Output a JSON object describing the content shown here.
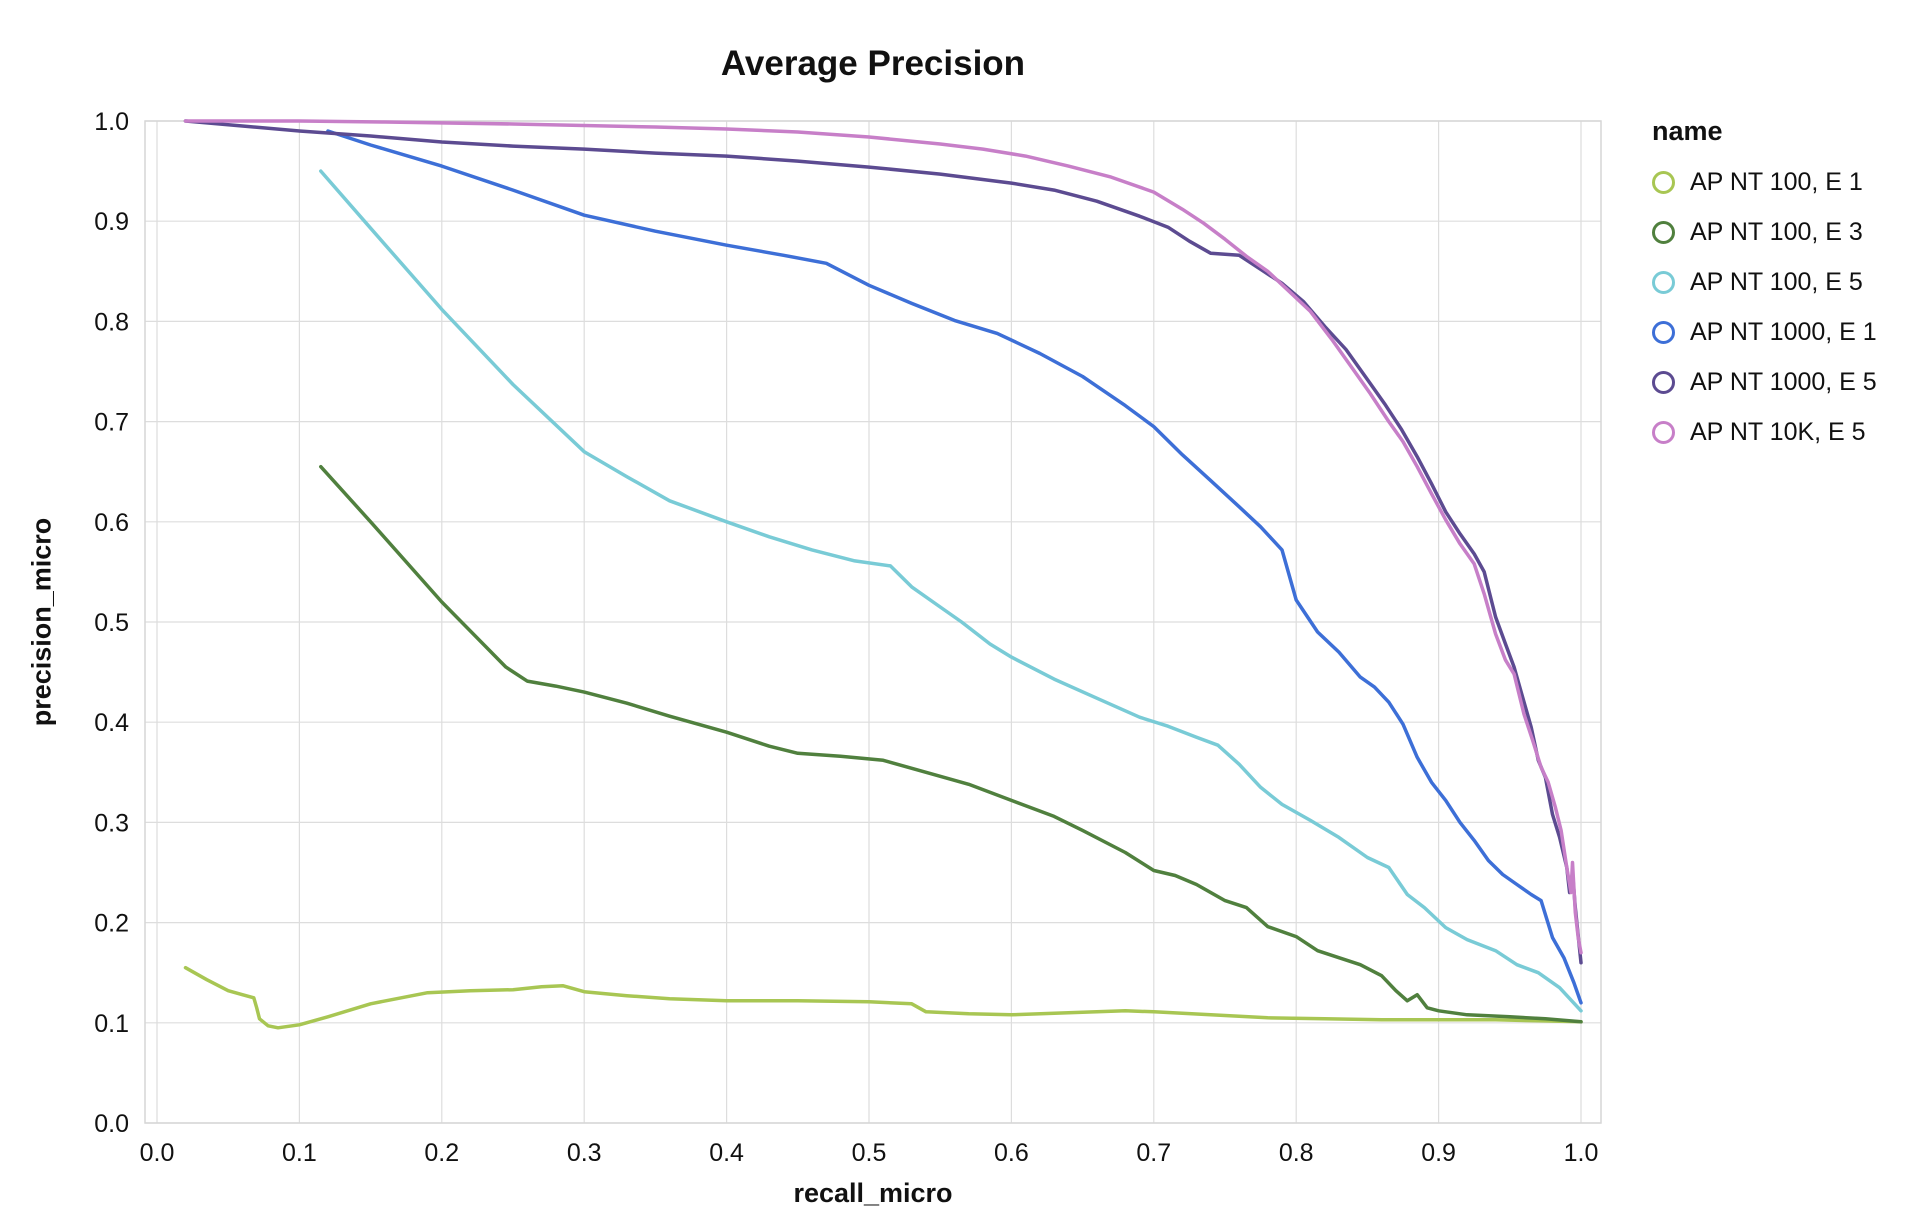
{
  "chart_data": {
    "type": "line",
    "title": "Average Precision",
    "xlabel": "recall_micro",
    "ylabel": "precision_micro",
    "legend_title": "name",
    "xlim": [
      0.0,
      1.0
    ],
    "ylim": [
      0.0,
      1.0
    ],
    "xticks": [
      0.0,
      0.1,
      0.2,
      0.3,
      0.4,
      0.5,
      0.6,
      0.7,
      0.8,
      0.9,
      1.0
    ],
    "yticks": [
      0.0,
      0.1,
      0.2,
      0.3,
      0.4,
      0.5,
      0.6,
      0.7,
      0.8,
      0.9,
      1.0
    ],
    "grid": true,
    "grid_color": "#dddddd",
    "frame_color": "#d6d6d6",
    "legend_position": "right",
    "series": [
      {
        "name": "AP NT 100, E 1",
        "color": "#a8c653",
        "points": [
          [
            0.02,
            0.155
          ],
          [
            0.035,
            0.143
          ],
          [
            0.05,
            0.132
          ],
          [
            0.06,
            0.128
          ],
          [
            0.068,
            0.125
          ],
          [
            0.07,
            0.115
          ],
          [
            0.072,
            0.104
          ],
          [
            0.078,
            0.097
          ],
          [
            0.085,
            0.095
          ],
          [
            0.1,
            0.098
          ],
          [
            0.12,
            0.106
          ],
          [
            0.15,
            0.119
          ],
          [
            0.19,
            0.13
          ],
          [
            0.22,
            0.132
          ],
          [
            0.25,
            0.133
          ],
          [
            0.27,
            0.136
          ],
          [
            0.285,
            0.137
          ],
          [
            0.3,
            0.131
          ],
          [
            0.33,
            0.127
          ],
          [
            0.36,
            0.124
          ],
          [
            0.4,
            0.122
          ],
          [
            0.45,
            0.122
          ],
          [
            0.5,
            0.121
          ],
          [
            0.53,
            0.119
          ],
          [
            0.54,
            0.111
          ],
          [
            0.57,
            0.109
          ],
          [
            0.6,
            0.108
          ],
          [
            0.64,
            0.11
          ],
          [
            0.68,
            0.112
          ],
          [
            0.7,
            0.111
          ],
          [
            0.74,
            0.108
          ],
          [
            0.78,
            0.105
          ],
          [
            0.82,
            0.104
          ],
          [
            0.86,
            0.103
          ],
          [
            0.9,
            0.103
          ],
          [
            0.94,
            0.103
          ],
          [
            0.97,
            0.102
          ],
          [
            1.0,
            0.101
          ]
        ]
      },
      {
        "name": "AP NT 100, E 3",
        "color": "#50803e",
        "points": [
          [
            0.115,
            0.655
          ],
          [
            0.15,
            0.6
          ],
          [
            0.2,
            0.52
          ],
          [
            0.245,
            0.455
          ],
          [
            0.26,
            0.441
          ],
          [
            0.28,
            0.436
          ],
          [
            0.3,
            0.43
          ],
          [
            0.33,
            0.419
          ],
          [
            0.36,
            0.406
          ],
          [
            0.4,
            0.39
          ],
          [
            0.43,
            0.376
          ],
          [
            0.45,
            0.369
          ],
          [
            0.48,
            0.366
          ],
          [
            0.51,
            0.362
          ],
          [
            0.54,
            0.35
          ],
          [
            0.57,
            0.338
          ],
          [
            0.6,
            0.322
          ],
          [
            0.63,
            0.306
          ],
          [
            0.65,
            0.292
          ],
          [
            0.68,
            0.27
          ],
          [
            0.7,
            0.252
          ],
          [
            0.715,
            0.247
          ],
          [
            0.73,
            0.238
          ],
          [
            0.75,
            0.222
          ],
          [
            0.765,
            0.215
          ],
          [
            0.78,
            0.196
          ],
          [
            0.8,
            0.186
          ],
          [
            0.815,
            0.172
          ],
          [
            0.83,
            0.165
          ],
          [
            0.845,
            0.158
          ],
          [
            0.86,
            0.147
          ],
          [
            0.87,
            0.132
          ],
          [
            0.878,
            0.122
          ],
          [
            0.885,
            0.128
          ],
          [
            0.892,
            0.115
          ],
          [
            0.9,
            0.112
          ],
          [
            0.92,
            0.108
          ],
          [
            0.95,
            0.106
          ],
          [
            0.975,
            0.104
          ],
          [
            1.0,
            0.101
          ]
        ]
      },
      {
        "name": "AP NT 100, E 5",
        "color": "#79cbd6",
        "points": [
          [
            0.115,
            0.95
          ],
          [
            0.15,
            0.893
          ],
          [
            0.2,
            0.812
          ],
          [
            0.25,
            0.737
          ],
          [
            0.3,
            0.67
          ],
          [
            0.33,
            0.645
          ],
          [
            0.36,
            0.621
          ],
          [
            0.4,
            0.6
          ],
          [
            0.43,
            0.585
          ],
          [
            0.46,
            0.572
          ],
          [
            0.49,
            0.561
          ],
          [
            0.515,
            0.556
          ],
          [
            0.53,
            0.535
          ],
          [
            0.55,
            0.515
          ],
          [
            0.565,
            0.5
          ],
          [
            0.585,
            0.478
          ],
          [
            0.6,
            0.465
          ],
          [
            0.63,
            0.443
          ],
          [
            0.66,
            0.424
          ],
          [
            0.69,
            0.405
          ],
          [
            0.71,
            0.396
          ],
          [
            0.73,
            0.385
          ],
          [
            0.745,
            0.377
          ],
          [
            0.76,
            0.358
          ],
          [
            0.775,
            0.335
          ],
          [
            0.79,
            0.318
          ],
          [
            0.81,
            0.302
          ],
          [
            0.83,
            0.285
          ],
          [
            0.85,
            0.265
          ],
          [
            0.865,
            0.255
          ],
          [
            0.878,
            0.228
          ],
          [
            0.89,
            0.215
          ],
          [
            0.905,
            0.195
          ],
          [
            0.92,
            0.183
          ],
          [
            0.94,
            0.172
          ],
          [
            0.955,
            0.158
          ],
          [
            0.97,
            0.15
          ],
          [
            0.985,
            0.135
          ],
          [
            1.0,
            0.112
          ]
        ]
      },
      {
        "name": "AP NT 1000, E 1",
        "color": "#3d6fd7",
        "points": [
          [
            0.12,
            0.99
          ],
          [
            0.15,
            0.976
          ],
          [
            0.2,
            0.955
          ],
          [
            0.25,
            0.931
          ],
          [
            0.3,
            0.906
          ],
          [
            0.35,
            0.89
          ],
          [
            0.4,
            0.876
          ],
          [
            0.44,
            0.866
          ],
          [
            0.47,
            0.858
          ],
          [
            0.5,
            0.836
          ],
          [
            0.53,
            0.818
          ],
          [
            0.56,
            0.801
          ],
          [
            0.59,
            0.788
          ],
          [
            0.62,
            0.768
          ],
          [
            0.65,
            0.745
          ],
          [
            0.68,
            0.716
          ],
          [
            0.7,
            0.695
          ],
          [
            0.72,
            0.667
          ],
          [
            0.74,
            0.641
          ],
          [
            0.76,
            0.615
          ],
          [
            0.775,
            0.595
          ],
          [
            0.79,
            0.572
          ],
          [
            0.8,
            0.522
          ],
          [
            0.815,
            0.49
          ],
          [
            0.83,
            0.47
          ],
          [
            0.845,
            0.445
          ],
          [
            0.855,
            0.435
          ],
          [
            0.865,
            0.42
          ],
          [
            0.875,
            0.398
          ],
          [
            0.885,
            0.365
          ],
          [
            0.895,
            0.34
          ],
          [
            0.905,
            0.322
          ],
          [
            0.915,
            0.3
          ],
          [
            0.925,
            0.282
          ],
          [
            0.935,
            0.262
          ],
          [
            0.945,
            0.248
          ],
          [
            0.955,
            0.238
          ],
          [
            0.965,
            0.228
          ],
          [
            0.972,
            0.222
          ],
          [
            0.98,
            0.185
          ],
          [
            0.988,
            0.165
          ],
          [
            0.995,
            0.14
          ],
          [
            1.0,
            0.12
          ]
        ]
      },
      {
        "name": "AP NT 1000, E 5",
        "color": "#5c4b91",
        "points": [
          [
            0.02,
            1.0
          ],
          [
            0.06,
            0.995
          ],
          [
            0.1,
            0.99
          ],
          [
            0.15,
            0.985
          ],
          [
            0.2,
            0.979
          ],
          [
            0.25,
            0.975
          ],
          [
            0.3,
            0.972
          ],
          [
            0.35,
            0.968
          ],
          [
            0.4,
            0.965
          ],
          [
            0.45,
            0.96
          ],
          [
            0.5,
            0.954
          ],
          [
            0.55,
            0.947
          ],
          [
            0.6,
            0.938
          ],
          [
            0.63,
            0.931
          ],
          [
            0.66,
            0.92
          ],
          [
            0.69,
            0.905
          ],
          [
            0.71,
            0.894
          ],
          [
            0.725,
            0.88
          ],
          [
            0.74,
            0.868
          ],
          [
            0.76,
            0.866
          ],
          [
            0.775,
            0.852
          ],
          [
            0.79,
            0.838
          ],
          [
            0.805,
            0.82
          ],
          [
            0.82,
            0.795
          ],
          [
            0.835,
            0.772
          ],
          [
            0.85,
            0.742
          ],
          [
            0.862,
            0.718
          ],
          [
            0.874,
            0.692
          ],
          [
            0.885,
            0.665
          ],
          [
            0.895,
            0.638
          ],
          [
            0.905,
            0.61
          ],
          [
            0.915,
            0.588
          ],
          [
            0.925,
            0.568
          ],
          [
            0.932,
            0.55
          ],
          [
            0.94,
            0.505
          ],
          [
            0.947,
            0.478
          ],
          [
            0.953,
            0.455
          ],
          [
            0.959,
            0.425
          ],
          [
            0.965,
            0.395
          ],
          [
            0.97,
            0.362
          ],
          [
            0.975,
            0.345
          ],
          [
            0.98,
            0.308
          ],
          [
            0.985,
            0.285
          ],
          [
            0.99,
            0.255
          ],
          [
            0.992,
            0.23
          ],
          [
            0.994,
            0.25
          ],
          [
            0.996,
            0.215
          ],
          [
            1.0,
            0.16
          ]
        ]
      },
      {
        "name": "AP NT 10K, E 5",
        "color": "#c77fc8",
        "points": [
          [
            0.02,
            1.0
          ],
          [
            0.1,
            1.0
          ],
          [
            0.16,
            0.999
          ],
          [
            0.25,
            0.997
          ],
          [
            0.35,
            0.994
          ],
          [
            0.4,
            0.992
          ],
          [
            0.45,
            0.989
          ],
          [
            0.5,
            0.984
          ],
          [
            0.55,
            0.977
          ],
          [
            0.58,
            0.972
          ],
          [
            0.61,
            0.965
          ],
          [
            0.64,
            0.955
          ],
          [
            0.67,
            0.944
          ],
          [
            0.7,
            0.929
          ],
          [
            0.72,
            0.912
          ],
          [
            0.735,
            0.898
          ],
          [
            0.75,
            0.882
          ],
          [
            0.765,
            0.865
          ],
          [
            0.78,
            0.85
          ],
          [
            0.795,
            0.83
          ],
          [
            0.81,
            0.81
          ],
          [
            0.825,
            0.782
          ],
          [
            0.84,
            0.752
          ],
          [
            0.852,
            0.728
          ],
          [
            0.865,
            0.7
          ],
          [
            0.875,
            0.68
          ],
          [
            0.885,
            0.655
          ],
          [
            0.895,
            0.628
          ],
          [
            0.905,
            0.602
          ],
          [
            0.915,
            0.578
          ],
          [
            0.925,
            0.558
          ],
          [
            0.932,
            0.528
          ],
          [
            0.94,
            0.488
          ],
          [
            0.947,
            0.462
          ],
          [
            0.953,
            0.448
          ],
          [
            0.96,
            0.408
          ],
          [
            0.966,
            0.382
          ],
          [
            0.972,
            0.355
          ],
          [
            0.977,
            0.34
          ],
          [
            0.982,
            0.315
          ],
          [
            0.986,
            0.292
          ],
          [
            0.99,
            0.255
          ],
          [
            0.993,
            0.23
          ],
          [
            0.994,
            0.26
          ],
          [
            0.996,
            0.21
          ],
          [
            0.998,
            0.185
          ],
          [
            1.0,
            0.17
          ]
        ]
      }
    ]
  }
}
